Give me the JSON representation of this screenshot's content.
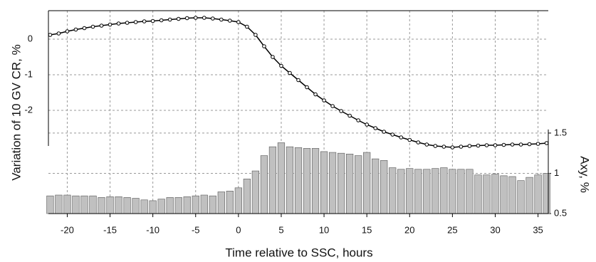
{
  "chart_data": {
    "type": "bar_line_dual",
    "xlabel": "Time relative to SSC, hours",
    "ylabel": "Variation of 10 GV CR, %",
    "y2label": "Axy, %",
    "x": [
      -22,
      -21,
      -20,
      -19,
      -18,
      -17,
      -16,
      -15,
      -14,
      -13,
      -12,
      -11,
      -10,
      -9,
      -8,
      -7,
      -6,
      -5,
      -4,
      -3,
      -2,
      -1,
      0,
      1,
      2,
      3,
      4,
      5,
      6,
      7,
      8,
      9,
      10,
      11,
      12,
      13,
      14,
      15,
      16,
      17,
      18,
      19,
      20,
      21,
      22,
      23,
      24,
      25,
      26,
      27,
      28,
      29,
      30,
      31,
      32,
      33,
      34,
      35,
      36
    ],
    "series": [
      {
        "kind": "line",
        "color": "#000000",
        "axis": "y",
        "values": [
          0.12,
          0.16,
          0.22,
          0.27,
          0.31,
          0.35,
          0.38,
          0.41,
          0.44,
          0.46,
          0.48,
          0.5,
          0.51,
          0.53,
          0.55,
          0.57,
          0.59,
          0.6,
          0.6,
          0.58,
          0.55,
          0.52,
          0.48,
          0.35,
          0.12,
          -0.2,
          -0.5,
          -0.75,
          -0.95,
          -1.15,
          -1.35,
          -1.55,
          -1.72,
          -1.88,
          -2.02,
          -2.15,
          -2.28,
          -2.4,
          -2.5,
          -2.6,
          -2.68,
          -2.76,
          -2.83,
          -2.9,
          -2.96,
          -3.0,
          -3.02,
          -3.04,
          -3.02,
          -3.0,
          -2.99,
          -2.98,
          -2.98,
          -2.97,
          -2.96,
          -2.96,
          -2.95,
          -2.94,
          -2.92
        ]
      },
      {
        "kind": "bar",
        "color": "#c0c0c0",
        "axis": "y2",
        "values": [
          0.72,
          0.73,
          0.73,
          0.72,
          0.72,
          0.72,
          0.7,
          0.71,
          0.71,
          0.7,
          0.69,
          0.67,
          0.66,
          0.68,
          0.7,
          0.7,
          0.71,
          0.72,
          0.73,
          0.72,
          0.77,
          0.78,
          0.82,
          0.93,
          1.03,
          1.22,
          1.33,
          1.38,
          1.33,
          1.32,
          1.31,
          1.31,
          1.27,
          1.26,
          1.25,
          1.24,
          1.22,
          1.26,
          1.18,
          1.16,
          1.07,
          1.05,
          1.06,
          1.05,
          1.05,
          1.06,
          1.07,
          1.05,
          1.05,
          1.05,
          0.98,
          0.98,
          0.99,
          0.97,
          0.96,
          0.91,
          0.95,
          0.98,
          1.0
        ]
      }
    ],
    "xlim": [
      -22.2,
      36.2
    ],
    "xticks": [
      -20,
      -15,
      -10,
      -5,
      0,
      5,
      10,
      15,
      20,
      25,
      30,
      35
    ],
    "ylim": [
      -4.9,
      0.8
    ],
    "yticks": [
      0,
      -1,
      -2
    ],
    "y2lim": [
      0.5,
      3.02
    ],
    "y2ticks": [
      0.5,
      1,
      1.5
    ],
    "grid": true
  }
}
